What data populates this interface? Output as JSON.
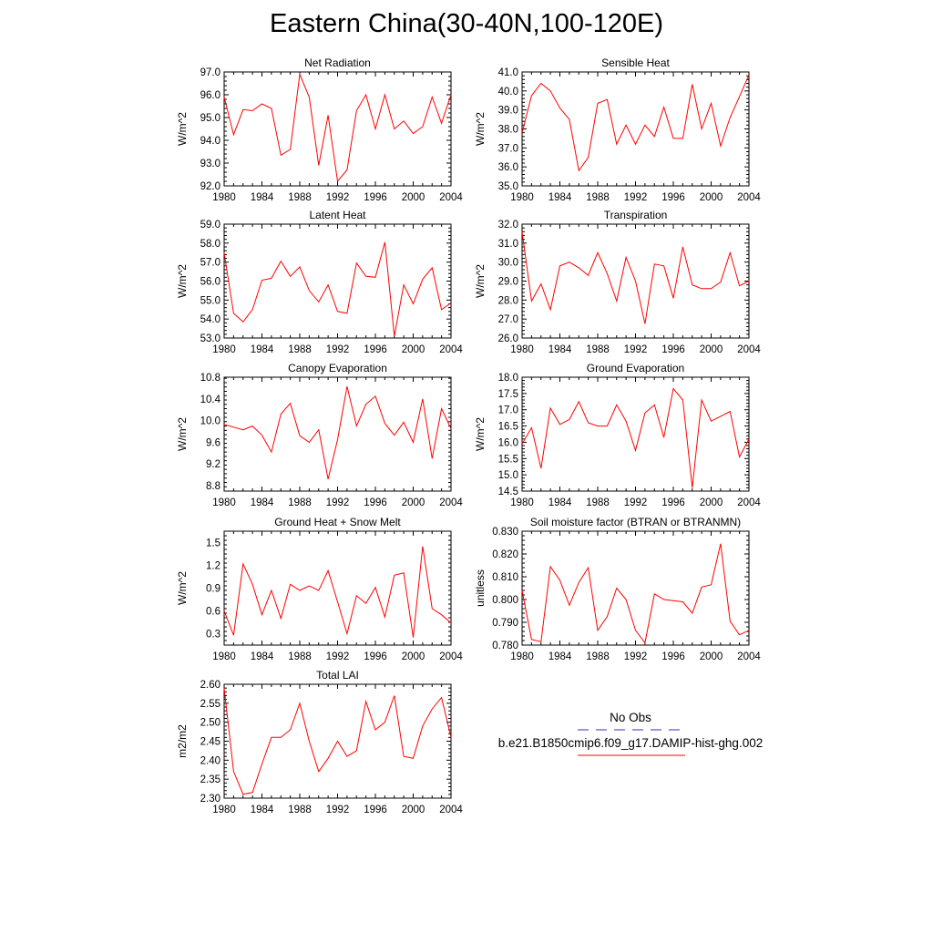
{
  "title": "Eastern China(30-40N,100-120E)",
  "colors": {
    "model": "#ff0000",
    "obs": "#3030c0",
    "axes": "#000000"
  },
  "legend": {
    "obs_label": "No Obs",
    "model_label": "b.e21.B1850cmip6.f09_g17.DAMIP-hist-ghg.002"
  },
  "chart_data": [
    {
      "type": "line",
      "title": "Net Radiation",
      "xlabel": "",
      "ylabel": "W/m^2",
      "xlim": [
        1980,
        2004
      ],
      "ylim": [
        92.0,
        97.0
      ],
      "xticks": [
        1980,
        1984,
        1988,
        1992,
        1996,
        2000,
        2004
      ],
      "yticks": [
        92.0,
        93.0,
        94.0,
        95.0,
        96.0,
        97.0
      ],
      "ytick_labels": [
        "92.0",
        "93.0",
        "94.0",
        "95.0",
        "96.0",
        "97.0"
      ],
      "x": [
        1980,
        1981,
        1982,
        1983,
        1984,
        1985,
        1986,
        1987,
        1988,
        1989,
        1990,
        1991,
        1992,
        1993,
        1994,
        1995,
        1996,
        1997,
        1998,
        1999,
        2000,
        2001,
        2002,
        2003,
        2004
      ],
      "series": [
        {
          "name": "b.e21.B1850cmip6.f09_g17.DAMIP-hist-ghg.002",
          "values": [
            95.9,
            94.25,
            95.35,
            95.3,
            95.6,
            95.4,
            93.35,
            93.6,
            96.9,
            95.9,
            92.9,
            95.1,
            92.2,
            92.7,
            95.3,
            96.0,
            94.5,
            96.0,
            94.5,
            94.85,
            94.3,
            94.6,
            95.9,
            94.75,
            96.0
          ]
        }
      ]
    },
    {
      "type": "line",
      "title": "Sensible Heat",
      "xlabel": "",
      "ylabel": "W/m^2",
      "xlim": [
        1980,
        2004
      ],
      "ylim": [
        35.0,
        41.0
      ],
      "xticks": [
        1980,
        1984,
        1988,
        1992,
        1996,
        2000,
        2004
      ],
      "yticks": [
        35.0,
        36.0,
        37.0,
        38.0,
        39.0,
        40.0,
        41.0
      ],
      "ytick_labels": [
        "35.0",
        "36.0",
        "37.0",
        "38.0",
        "39.0",
        "40.0",
        "41.0"
      ],
      "x": [
        1980,
        1981,
        1982,
        1983,
        1984,
        1985,
        1986,
        1987,
        1988,
        1989,
        1990,
        1991,
        1992,
        1993,
        1994,
        1995,
        1996,
        1997,
        1998,
        1999,
        2000,
        2001,
        2002,
        2003,
        2004
      ],
      "series": [
        {
          "name": "b.e21.B1850cmip6.f09_g17.DAMIP-hist-ghg.002",
          "values": [
            37.8,
            39.75,
            40.4,
            40.0,
            39.1,
            38.5,
            35.8,
            36.5,
            39.35,
            39.55,
            37.2,
            38.2,
            37.2,
            38.2,
            37.6,
            39.15,
            37.5,
            37.5,
            40.35,
            38.0,
            39.35,
            37.1,
            38.6,
            39.7,
            40.85
          ]
        }
      ]
    },
    {
      "type": "line",
      "title": "Latent Heat",
      "xlabel": "",
      "ylabel": "W/m^2",
      "xlim": [
        1980,
        2004
      ],
      "ylim": [
        53.0,
        59.0
      ],
      "xticks": [
        1980,
        1984,
        1988,
        1992,
        1996,
        2000,
        2004
      ],
      "yticks": [
        53.0,
        54.0,
        55.0,
        56.0,
        57.0,
        58.0,
        59.0
      ],
      "ytick_labels": [
        "53.0",
        "54.0",
        "55.0",
        "56.0",
        "57.0",
        "58.0",
        "59.0"
      ],
      "x": [
        1980,
        1981,
        1982,
        1983,
        1984,
        1985,
        1986,
        1987,
        1988,
        1989,
        1990,
        1991,
        1992,
        1993,
        1994,
        1995,
        1996,
        1997,
        1998,
        1999,
        2000,
        2001,
        2002,
        2003,
        2004
      ],
      "series": [
        {
          "name": "b.e21.B1850cmip6.f09_g17.DAMIP-hist-ghg.002",
          "values": [
            57.5,
            54.3,
            53.85,
            54.5,
            56.05,
            56.15,
            57.05,
            56.25,
            56.75,
            55.5,
            54.9,
            55.8,
            54.4,
            54.3,
            56.95,
            56.25,
            56.2,
            58.05,
            53.1,
            55.8,
            54.8,
            56.1,
            56.7,
            54.5,
            54.85
          ]
        }
      ]
    },
    {
      "type": "line",
      "title": "Transpiration",
      "xlabel": "",
      "ylabel": "W/m^2",
      "xlim": [
        1980,
        2004
      ],
      "ylim": [
        26.0,
        32.0
      ],
      "xticks": [
        1980,
        1984,
        1988,
        1992,
        1996,
        2000,
        2004
      ],
      "yticks": [
        26.0,
        27.0,
        28.0,
        29.0,
        30.0,
        31.0,
        32.0
      ],
      "ytick_labels": [
        "26.0",
        "27.0",
        "28.0",
        "29.0",
        "30.0",
        "31.0",
        "32.0"
      ],
      "x": [
        1980,
        1981,
        1982,
        1983,
        1984,
        1985,
        1986,
        1987,
        1988,
        1989,
        1990,
        1991,
        1992,
        1993,
        1994,
        1995,
        1996,
        1997,
        1998,
        1999,
        2000,
        2001,
        2002,
        2003,
        2004
      ],
      "series": [
        {
          "name": "b.e21.B1850cmip6.f09_g17.DAMIP-hist-ghg.002",
          "values": [
            31.6,
            27.95,
            28.85,
            27.5,
            29.8,
            30.0,
            29.7,
            29.3,
            30.5,
            29.4,
            27.95,
            30.25,
            29.0,
            26.75,
            29.9,
            29.8,
            28.1,
            30.8,
            28.8,
            28.6,
            28.6,
            28.95,
            30.5,
            28.75,
            29.0
          ]
        }
      ]
    },
    {
      "type": "line",
      "title": "Canopy Evaporation",
      "xlabel": "",
      "ylabel": "W/m^2",
      "xlim": [
        1980,
        2004
      ],
      "ylim": [
        8.7,
        10.8
      ],
      "xticks": [
        1980,
        1984,
        1988,
        1992,
        1996,
        2000,
        2004
      ],
      "yticks": [
        8.8,
        9.2,
        9.6,
        10.0,
        10.4,
        10.8
      ],
      "ytick_labels": [
        "8.8",
        "9.2",
        "9.6",
        "10.0",
        "10.4",
        "10.8"
      ],
      "x": [
        1980,
        1981,
        1982,
        1983,
        1984,
        1985,
        1986,
        1987,
        1988,
        1989,
        1990,
        1991,
        1992,
        1993,
        1994,
        1995,
        1996,
        1997,
        1998,
        1999,
        2000,
        2001,
        2002,
        2003,
        2004
      ],
      "series": [
        {
          "name": "b.e21.B1850cmip6.f09_g17.DAMIP-hist-ghg.002",
          "values": [
            9.93,
            9.88,
            9.83,
            9.9,
            9.73,
            9.42,
            10.12,
            10.32,
            9.72,
            9.6,
            9.83,
            8.92,
            9.65,
            10.63,
            9.9,
            10.3,
            10.45,
            9.95,
            9.73,
            9.97,
            9.6,
            10.4,
            9.3,
            10.22,
            9.85
          ]
        }
      ]
    },
    {
      "type": "line",
      "title": "Ground Evaporation",
      "xlabel": "",
      "ylabel": "W/m^2",
      "xlim": [
        1980,
        2004
      ],
      "ylim": [
        14.5,
        18.0
      ],
      "xticks": [
        1980,
        1984,
        1988,
        1992,
        1996,
        2000,
        2004
      ],
      "yticks": [
        14.5,
        15.0,
        15.5,
        16.0,
        16.5,
        17.0,
        17.5,
        18.0
      ],
      "ytick_labels": [
        "14.5",
        "15.0",
        "15.5",
        "16.0",
        "16.5",
        "17.0",
        "17.5",
        "18.0"
      ],
      "x": [
        1980,
        1981,
        1982,
        1983,
        1984,
        1985,
        1986,
        1987,
        1988,
        1989,
        1990,
        1991,
        1992,
        1993,
        1994,
        1995,
        1996,
        1997,
        1998,
        1999,
        2000,
        2001,
        2002,
        2003,
        2004
      ],
      "series": [
        {
          "name": "b.e21.B1850cmip6.f09_g17.DAMIP-hist-ghg.002",
          "values": [
            15.95,
            16.45,
            15.2,
            17.05,
            16.55,
            16.7,
            17.25,
            16.6,
            16.5,
            16.5,
            17.15,
            16.65,
            15.75,
            16.9,
            17.15,
            16.15,
            17.65,
            17.3,
            14.6,
            17.3,
            16.65,
            16.8,
            16.95,
            15.55,
            16.1
          ]
        }
      ]
    },
    {
      "type": "line",
      "title": "Ground Heat + Snow Melt",
      "xlabel": "",
      "ylabel": "W/m^2",
      "xlim": [
        1980,
        2004
      ],
      "ylim": [
        0.15,
        1.65
      ],
      "xticks": [
        1980,
        1984,
        1988,
        1992,
        1996,
        2000,
        2004
      ],
      "yticks": [
        0.3,
        0.6,
        0.9,
        1.2,
        1.5
      ],
      "ytick_labels": [
        "0.3",
        "0.6",
        "0.9",
        "1.2",
        "1.5"
      ],
      "x": [
        1980,
        1981,
        1982,
        1983,
        1984,
        1985,
        1986,
        1987,
        1988,
        1989,
        1990,
        1991,
        1992,
        1993,
        1994,
        1995,
        1996,
        1997,
        1998,
        1999,
        2000,
        2001,
        2002,
        2003,
        2004
      ],
      "series": [
        {
          "name": "b.e21.B1850cmip6.f09_g17.DAMIP-hist-ghg.002",
          "values": [
            0.6,
            0.28,
            1.22,
            0.95,
            0.55,
            0.87,
            0.5,
            0.95,
            0.87,
            0.93,
            0.87,
            1.13,
            0.72,
            0.3,
            0.8,
            0.7,
            0.91,
            0.52,
            1.07,
            1.1,
            0.25,
            1.45,
            0.63,
            0.55,
            0.44
          ]
        }
      ]
    },
    {
      "type": "line",
      "title": "Soil moisture factor (BTRAN or BTRANMN)",
      "xlabel": "",
      "ylabel": "unitless",
      "xlim": [
        1980,
        2004
      ],
      "ylim": [
        0.78,
        0.83
      ],
      "xticks": [
        1980,
        1984,
        1988,
        1992,
        1996,
        2000,
        2004
      ],
      "yticks": [
        0.78,
        0.79,
        0.8,
        0.81,
        0.82,
        0.83
      ],
      "ytick_labels": [
        "0.780",
        "0.790",
        "0.800",
        "0.810",
        "0.820",
        "0.830"
      ],
      "x": [
        1980,
        1981,
        1982,
        1983,
        1984,
        1985,
        1986,
        1987,
        1988,
        1989,
        1990,
        1991,
        1992,
        1993,
        1994,
        1995,
        1996,
        1997,
        1998,
        1999,
        2000,
        2001,
        2002,
        2003,
        2004
      ],
      "series": [
        {
          "name": "b.e21.B1850cmip6.f09_g17.DAMIP-hist-ghg.002",
          "values": [
            0.804,
            0.7825,
            0.7815,
            0.8145,
            0.8085,
            0.7975,
            0.8075,
            0.814,
            0.7865,
            0.7925,
            0.805,
            0.8,
            0.7865,
            0.781,
            0.8025,
            0.8,
            0.7995,
            0.799,
            0.794,
            0.8055,
            0.8065,
            0.8245,
            0.7905,
            0.7845,
            0.7865
          ]
        }
      ]
    },
    {
      "type": "line",
      "title": "Total LAI",
      "xlabel": "",
      "ylabel": "m2/m2",
      "xlim": [
        1980,
        2004
      ],
      "ylim": [
        2.3,
        2.6
      ],
      "xticks": [
        1980,
        1984,
        1988,
        1992,
        1996,
        2000,
        2004
      ],
      "yticks": [
        2.3,
        2.35,
        2.4,
        2.45,
        2.5,
        2.55,
        2.6
      ],
      "ytick_labels": [
        "2.30",
        "2.35",
        "2.40",
        "2.45",
        "2.50",
        "2.55",
        "2.60"
      ],
      "x": [
        1980,
        1981,
        1982,
        1983,
        1984,
        1985,
        1986,
        1987,
        1988,
        1989,
        1990,
        1991,
        1992,
        1993,
        1994,
        1995,
        1996,
        1997,
        1998,
        1999,
        2000,
        2001,
        2002,
        2003,
        2004
      ],
      "series": [
        {
          "name": "b.e21.B1850cmip6.f09_g17.DAMIP-hist-ghg.002",
          "values": [
            2.59,
            2.37,
            2.31,
            2.315,
            2.39,
            2.46,
            2.46,
            2.48,
            2.55,
            2.45,
            2.37,
            2.405,
            2.45,
            2.41,
            2.425,
            2.555,
            2.48,
            2.5,
            2.57,
            2.41,
            2.405,
            2.49,
            2.535,
            2.565,
            2.46
          ]
        }
      ]
    }
  ]
}
